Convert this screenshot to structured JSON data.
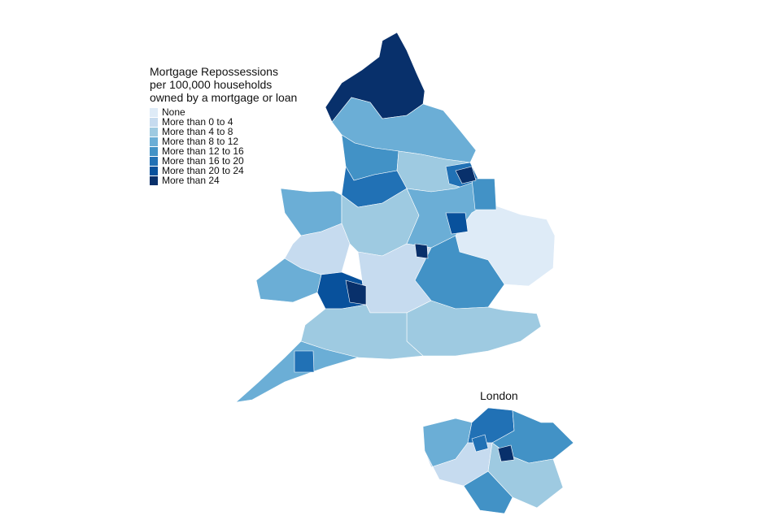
{
  "legend": {
    "title": "Mortgage Repossessions\nper 100,000 households\nowned by a mortgage or loan",
    "items": [
      {
        "label": "None",
        "color": "#deebf7"
      },
      {
        "label": "More than 0 to 4",
        "color": "#c6dbef"
      },
      {
        "label": "More than 4 to 8",
        "color": "#9ecae1"
      },
      {
        "label": "More than 8 to 12",
        "color": "#6baed6"
      },
      {
        "label": "More than 12 to 16",
        "color": "#4292c6"
      },
      {
        "label": "More than 16 to 20",
        "color": "#2171b5"
      },
      {
        "label": "More than 20 to 24",
        "color": "#08519c"
      },
      {
        "label": "More than 24",
        "color": "#08306b"
      }
    ]
  },
  "inset": {
    "title": "London"
  }
}
